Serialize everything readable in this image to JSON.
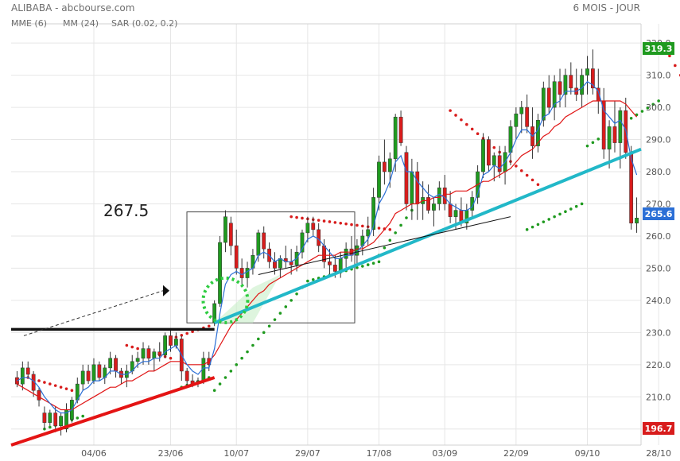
{
  "header": {
    "symbol_source": "ALIBABA - abcbourse.com",
    "period": "6 MOIS - JOUR"
  },
  "legend": [
    {
      "label": "MME (6)",
      "color": "#2b6fd6"
    },
    {
      "label": "MM (24)",
      "color": "#e01515"
    },
    {
      "label": "SAR (0.02, 0.2)",
      "color": "#e01515"
    }
  ],
  "colors": {
    "up": "#1f9a1f",
    "down": "#d81c1c",
    "mme": "#2b6fd6",
    "mm": "#e01515",
    "sar_up": "#1f9a1f",
    "sar_down": "#d81c1c",
    "trend_support": "#22b8c8",
    "trend_low": "#e41414",
    "resistance": "#111111",
    "grid": "#e6e6e6"
  },
  "annotations": {
    "breakout_label": "267.5"
  },
  "price_badges": {
    "high": {
      "label": "319.3",
      "value": 319.3,
      "color": "#1f9a1f"
    },
    "last": {
      "label": "265.6",
      "value": 265.6,
      "color": "#2b6fd6"
    },
    "low": {
      "label": "196.7",
      "value": 196.7,
      "color": "#d81c1c"
    }
  },
  "chart_data": {
    "type": "candlestick",
    "y_ticks": [
      "200.0",
      "210.0",
      "220.0",
      "230.0",
      "240.0",
      "250.0",
      "260.0",
      "270.0",
      "280.0",
      "290.0",
      "300.0",
      "310.0",
      "320.0"
    ],
    "y_tick_values": [
      200,
      210,
      220,
      230,
      240,
      250,
      260,
      270,
      280,
      290,
      300,
      310,
      320
    ],
    "ylim": [
      195,
      323
    ],
    "x_ticks": [
      {
        "label": "04/06",
        "index": 14
      },
      {
        "label": "23/06",
        "index": 28
      },
      {
        "label": "10/07",
        "index": 40
      },
      {
        "label": "29/07",
        "index": 53
      },
      {
        "label": "17/08",
        "index": 66
      },
      {
        "label": "03/09",
        "index": 78
      },
      {
        "label": "22/09",
        "index": 91
      },
      {
        "label": "09/10",
        "index": 104
      },
      {
        "label": "28/10",
        "index": 117
      }
    ],
    "candles": [
      [
        216,
        218,
        213,
        214
      ],
      [
        214,
        221,
        212,
        219
      ],
      [
        219,
        221,
        216,
        217
      ],
      [
        217,
        218,
        210,
        212
      ],
      [
        212,
        213,
        207,
        209
      ],
      [
        205,
        207,
        200,
        202
      ],
      [
        202,
        206,
        201,
        205
      ],
      [
        205,
        207,
        199,
        201
      ],
      [
        201,
        205,
        198,
        204
      ],
      [
        200,
        208,
        199,
        206
      ],
      [
        203,
        210,
        202,
        209
      ],
      [
        209,
        216,
        208,
        214
      ],
      [
        214,
        220,
        212,
        218
      ],
      [
        218,
        220,
        214,
        215
      ],
      [
        215,
        222,
        214,
        220
      ],
      [
        220,
        221,
        215,
        216
      ],
      [
        216,
        220,
        214,
        219
      ],
      [
        219,
        224,
        217,
        222
      ],
      [
        222,
        223,
        216,
        218
      ],
      [
        218,
        219,
        214,
        216
      ],
      [
        216,
        220,
        213,
        218
      ],
      [
        218,
        223,
        217,
        221
      ],
      [
        221,
        224,
        219,
        222
      ],
      [
        222,
        227,
        220,
        225
      ],
      [
        225,
        226,
        220,
        222
      ],
      [
        222,
        225,
        218,
        224
      ],
      [
        224,
        227,
        221,
        223
      ],
      [
        223,
        230,
        222,
        229
      ],
      [
        229,
        231,
        224,
        226
      ],
      [
        226,
        230,
        225,
        228
      ],
      [
        228,
        229,
        215,
        218
      ],
      [
        218,
        219,
        213,
        215
      ],
      [
        215,
        217,
        213,
        214
      ],
      [
        215,
        216,
        213,
        215
      ],
      [
        215,
        224,
        214,
        222
      ],
      [
        222,
        224,
        218,
        220
      ],
      [
        233,
        240,
        232,
        239
      ],
      [
        239,
        260,
        238,
        258
      ],
      [
        258,
        268,
        255,
        266
      ],
      [
        264,
        266,
        254,
        257
      ],
      [
        257,
        262,
        248,
        250
      ],
      [
        250,
        253,
        245,
        247
      ],
      [
        247,
        252,
        244,
        250
      ],
      [
        250,
        256,
        248,
        254
      ],
      [
        254,
        262,
        252,
        261
      ],
      [
        261,
        263,
        253,
        256
      ],
      [
        256,
        258,
        250,
        252
      ],
      [
        252,
        255,
        248,
        250
      ],
      [
        250,
        254,
        247,
        253
      ],
      [
        253,
        257,
        250,
        252
      ],
      [
        252,
        256,
        248,
        251
      ],
      [
        251,
        257,
        249,
        255
      ],
      [
        255,
        262,
        253,
        261
      ],
      [
        261,
        266,
        258,
        264
      ],
      [
        264,
        266,
        260,
        262
      ],
      [
        262,
        264,
        255,
        257
      ],
      [
        257,
        259,
        250,
        252
      ],
      [
        252,
        256,
        248,
        251
      ],
      [
        251,
        254,
        247,
        249
      ],
      [
        249,
        255,
        247,
        253
      ],
      [
        253,
        258,
        250,
        256
      ],
      [
        256,
        260,
        252,
        254
      ],
      [
        254,
        259,
        251,
        257
      ],
      [
        257,
        262,
        254,
        260
      ],
      [
        260,
        266,
        257,
        262
      ],
      [
        262,
        275,
        260,
        272
      ],
      [
        272,
        285,
        268,
        283
      ],
      [
        283,
        290,
        276,
        280
      ],
      [
        280,
        286,
        275,
        284
      ],
      [
        284,
        298,
        280,
        297
      ],
      [
        297,
        299,
        288,
        289
      ],
      [
        286,
        288,
        268,
        270
      ],
      [
        270,
        284,
        265,
        280
      ],
      [
        280,
        283,
        265,
        270
      ],
      [
        270,
        277,
        265,
        272
      ],
      [
        272,
        276,
        267,
        268
      ],
      [
        268,
        272,
        263,
        270
      ],
      [
        270,
        277,
        268,
        275
      ],
      [
        275,
        279,
        268,
        270
      ],
      [
        270,
        274,
        264,
        266
      ],
      [
        266,
        270,
        262,
        268
      ],
      [
        268,
        272,
        263,
        264
      ],
      [
        264,
        270,
        262,
        268
      ],
      [
        268,
        274,
        266,
        272
      ],
      [
        272,
        282,
        270,
        280
      ],
      [
        280,
        292,
        278,
        290
      ],
      [
        290,
        291,
        280,
        282
      ],
      [
        282,
        286,
        277,
        285
      ],
      [
        285,
        288,
        278,
        280
      ],
      [
        280,
        288,
        276,
        286
      ],
      [
        286,
        296,
        282,
        294
      ],
      [
        294,
        300,
        290,
        298
      ],
      [
        298,
        302,
        292,
        300
      ],
      [
        300,
        304,
        292,
        294
      ],
      [
        294,
        300,
        284,
        288
      ],
      [
        288,
        298,
        286,
        296
      ],
      [
        296,
        308,
        294,
        306
      ],
      [
        306,
        310,
        298,
        300
      ],
      [
        300,
        310,
        296,
        308
      ],
      [
        308,
        312,
        300,
        304
      ],
      [
        304,
        312,
        300,
        310
      ],
      [
        310,
        314,
        304,
        306
      ],
      [
        306,
        312,
        302,
        304
      ],
      [
        304,
        312,
        300,
        310
      ],
      [
        310,
        316,
        304,
        312
      ],
      [
        312,
        318,
        304,
        306
      ],
      [
        306,
        312,
        298,
        302
      ],
      [
        302,
        306,
        284,
        287
      ],
      [
        287,
        296,
        281,
        294
      ],
      [
        294,
        302,
        286,
        289
      ],
      [
        289,
        300,
        281,
        299
      ],
      [
        299,
        303,
        284,
        286
      ],
      [
        286,
        288,
        262,
        264
      ],
      [
        264,
        272,
        261,
        265.6
      ]
    ],
    "series": [
      {
        "name": "MME (6)",
        "values": [
          215,
          216,
          216,
          215,
          213,
          210,
          208,
          206,
          205,
          205,
          206,
          209,
          212,
          213,
          215,
          215,
          216,
          218,
          218,
          217,
          217,
          218,
          220,
          221,
          221,
          222,
          222,
          224,
          225,
          226,
          223,
          220,
          218,
          217,
          219,
          219,
          225,
          236,
          245,
          248,
          249,
          248,
          249,
          250,
          254,
          255,
          254,
          252,
          253,
          252,
          252,
          253,
          256,
          259,
          260,
          259,
          257,
          255,
          253,
          253,
          254,
          254,
          255,
          257,
          259,
          263,
          270,
          273,
          277,
          283,
          285,
          280,
          280,
          277,
          275,
          273,
          272,
          273,
          272,
          270,
          269,
          268,
          268,
          269,
          273,
          279,
          280,
          282,
          281,
          283,
          286,
          290,
          293,
          293,
          291,
          293,
          297,
          298,
          301,
          302,
          305,
          305,
          305,
          306,
          308,
          307,
          305,
          299,
          297,
          295,
          296,
          293,
          284,
          279
        ]
      },
      {
        "name": "MM (24)",
        "values": [
          214,
          213,
          212,
          211,
          210,
          209,
          208,
          207,
          206,
          206,
          206,
          207,
          208,
          209,
          210,
          211,
          212,
          213,
          213,
          214,
          215,
          215,
          216,
          217,
          218,
          218,
          219,
          220,
          221,
          221,
          221,
          220,
          220,
          220,
          220,
          221,
          223,
          226,
          229,
          232,
          234,
          236,
          238,
          240,
          242,
          243,
          245,
          246,
          247,
          248,
          249,
          250,
          251,
          252,
          253,
          254,
          254,
          254,
          254,
          255,
          255,
          255,
          256,
          256,
          257,
          258,
          260,
          262,
          264,
          267,
          268,
          269,
          270,
          270,
          271,
          271,
          272,
          272,
          273,
          273,
          274,
          274,
          274,
          275,
          276,
          277,
          277,
          278,
          279,
          280,
          281,
          283,
          285,
          286,
          287,
          289,
          291,
          292,
          294,
          295,
          297,
          298,
          299,
          300,
          301,
          302,
          302,
          302,
          302,
          302,
          302,
          301,
          299,
          297
        ]
      }
    ]
  }
}
